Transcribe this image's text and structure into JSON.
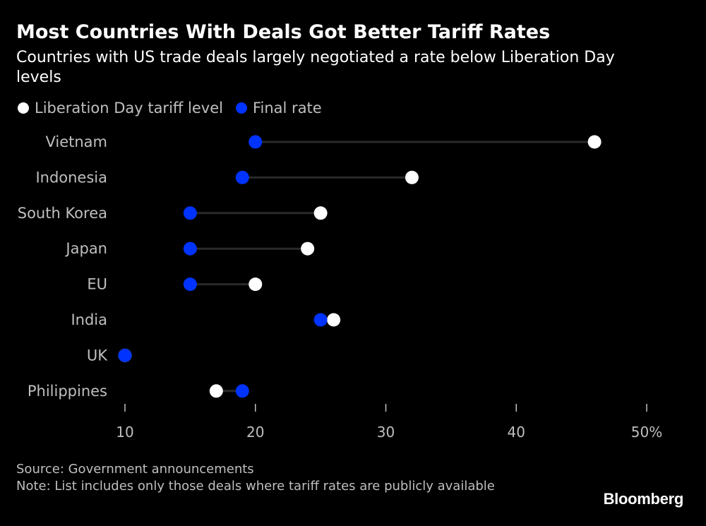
{
  "chart_data": {
    "type": "dot-plot",
    "title": "Most Countries With Deals Got Better Tariff Rates",
    "subtitle": "Countries with US trade deals largely negotiated a rate below Liberation Day levels",
    "legend": [
      {
        "name": "Liberation Day tariff level",
        "color": "#ffffff"
      },
      {
        "name": "Final rate",
        "color": "#0033ff"
      }
    ],
    "categories": [
      "Vietnam",
      "Indonesia",
      "South Korea",
      "Japan",
      "EU",
      "India",
      "UK",
      "Philippines"
    ],
    "series": [
      {
        "name": "Liberation Day tariff level",
        "values": [
          46,
          32,
          25,
          24,
          20,
          26,
          10,
          17
        ]
      },
      {
        "name": "Final rate",
        "values": [
          20,
          19,
          15,
          15,
          15,
          25,
          10,
          19
        ]
      }
    ],
    "xlim": [
      10,
      50
    ],
    "x_ticks": [
      10,
      20,
      30,
      40,
      50
    ],
    "x_tick_labels": [
      "10",
      "20",
      "30",
      "40",
      "50%"
    ],
    "xlabel": "",
    "ylabel": ""
  },
  "footer": {
    "source": "Source: Government announcements",
    "note": "Note: List includes only those deals where tariff rates are publicly available"
  },
  "brand": "Bloomberg",
  "colors": {
    "background": "#000000",
    "liberation": "#ffffff",
    "final": "#0033ff",
    "connector": "#2a2a2a",
    "muted_text": "#bfbfbf"
  }
}
